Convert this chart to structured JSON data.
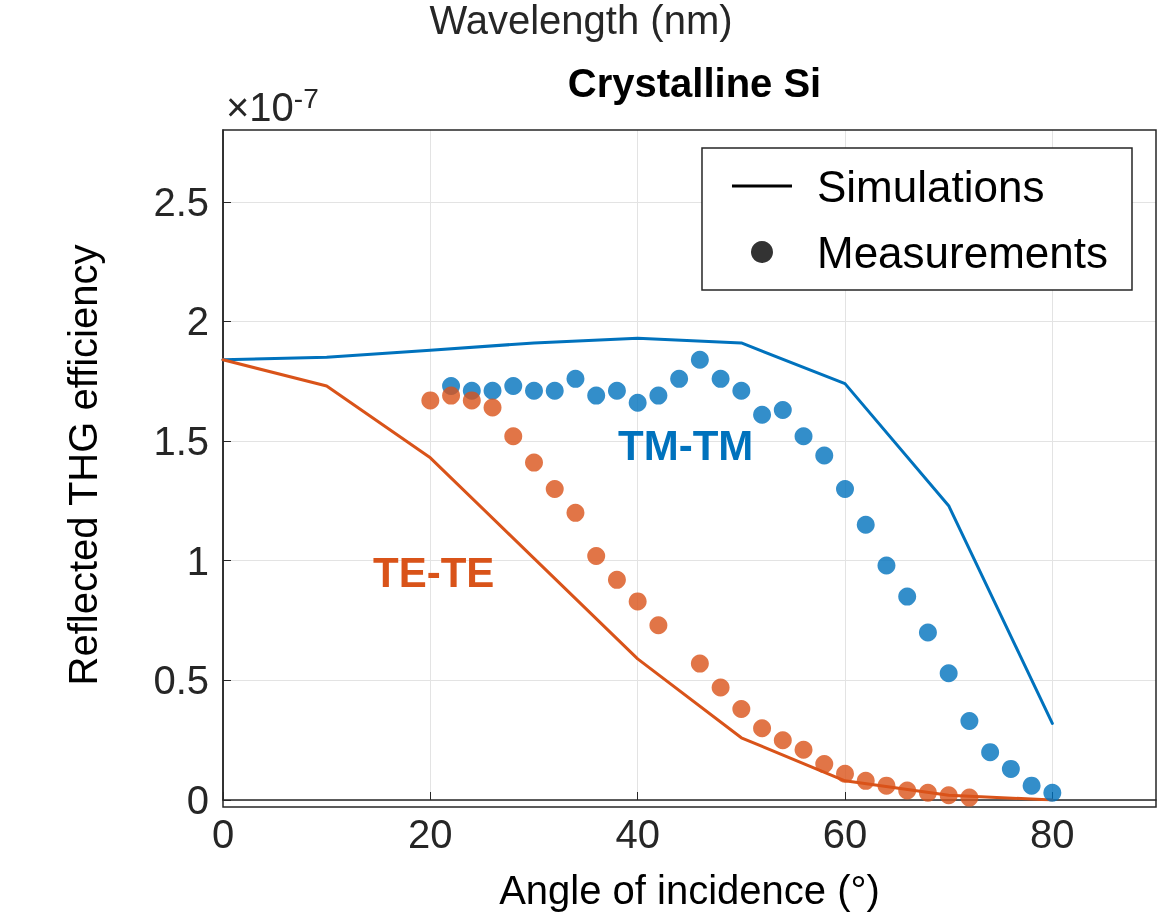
{
  "chart_data": {
    "type": "line",
    "title": "Crystalline Si",
    "xlabel": "Angle of incidence (°)",
    "ylabel": "Reflected THG efficiency",
    "annotations": [
      "Wavelength (nm)",
      "×10$^{-7}$"
    ],
    "series": [
      {
        "name": "Simulations",
        "type": "line",
        "color": "#000000",
        "marker": "none"
      },
      {
        "name": "Measurements",
        "type": "scatter",
        "color": "#000000"
      },
      {
        "type": "line",
        "color": "#0072bd",
        "marker": "none",
        "x": [
          0,
          10,
          20,
          30,
          40,
          50,
          60,
          70,
          80
        ],
        "values": [
          1.84,
          1.85,
          1.88,
          1.91,
          1.93,
          1.91,
          1.74,
          1.23,
          0.32
        ]
      },
      {
        "type": "line",
        "color": "#d95319",
        "marker": "none",
        "x": [
          0,
          10,
          20,
          30,
          40,
          50,
          60,
          70,
          80
        ],
        "values": [
          1.84,
          1.73,
          1.43,
          1.01,
          0.59,
          0.26,
          0.08,
          0.02,
          0.0
        ]
      },
      {
        "name": "TM-TM",
        "type": "scatter",
        "color": "#0072bd",
        "x": [
          22,
          24,
          26,
          28,
          30,
          32,
          34,
          36,
          38,
          40,
          42,
          44,
          46,
          48,
          50,
          52,
          54,
          56,
          58,
          60,
          62,
          64,
          66,
          68,
          70,
          72,
          74,
          76,
          78,
          80
        ],
        "values": [
          1.73,
          1.71,
          1.71,
          1.73,
          1.71,
          1.71,
          1.76,
          1.69,
          1.71,
          1.66,
          1.69,
          1.76,
          1.84,
          1.76,
          1.71,
          1.61,
          1.63,
          1.52,
          1.44,
          1.3,
          1.15,
          0.98,
          0.85,
          0.7,
          0.53,
          0.33,
          0.2,
          0.13,
          0.06,
          0.03
        ]
      },
      {
        "name": "TE-TE",
        "type": "scatter",
        "color": "#d95319",
        "x": [
          20,
          22,
          24,
          26,
          28,
          30,
          32,
          34,
          36,
          38,
          40,
          42,
          46,
          48,
          50,
          52,
          54,
          56,
          58,
          60,
          62,
          64,
          66,
          68,
          70,
          72
        ],
        "values": [
          1.67,
          1.69,
          1.67,
          1.64,
          1.52,
          1.41,
          1.3,
          1.2,
          1.02,
          0.92,
          0.83,
          0.73,
          0.57,
          0.47,
          0.38,
          0.3,
          0.25,
          0.21,
          0.15,
          0.11,
          0.08,
          0.06,
          0.04,
          0.03,
          0.02,
          0.01
        ]
      }
    ],
    "xlim": [
      0,
      90
    ],
    "xticks": [
      0,
      20,
      40,
      60,
      80
    ],
    "ylim": [
      0,
      2.8
    ],
    "yticks": [
      0,
      0.5,
      1,
      1.5,
      2,
      2.5
    ],
    "grid": true,
    "legend": "top right",
    "marker": "circle",
    "line_style": "solid"
  }
}
